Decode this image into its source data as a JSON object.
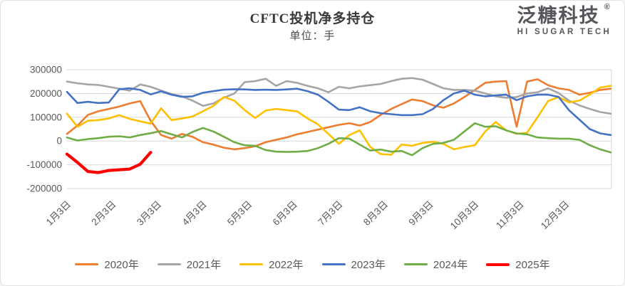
{
  "header": {
    "title": "CFTC投机净多持仓",
    "subtitle": "单位：手"
  },
  "logo": {
    "brand": "泛糖科技",
    "reg_mark": "®",
    "tagline": "HI SUGAR TECH"
  },
  "chart_data": {
    "type": "line",
    "title": "CFTC投机净多持仓",
    "unit_label": "单位：手",
    "xlabel": "",
    "ylabel": "",
    "grid": true,
    "legend_position": "bottom",
    "x_mode": "weekly_points_jan3_to_dec30",
    "x_tick_labels": [
      "1月3日",
      "2月3日",
      "3月3日",
      "4月3日",
      "5月3日",
      "6月3日",
      "7月3日",
      "8月3日",
      "9月3日",
      "10月3日",
      "11月3日",
      "12月3日"
    ],
    "ylim": [
      -200000,
      300000
    ],
    "y_ticks": [
      {
        "label": "300000",
        "value": 300000
      },
      {
        "label": "200000",
        "value": 200000
      },
      {
        "label": "100000",
        "value": 100000
      },
      {
        "label": "0",
        "value": 0
      },
      {
        "label": "-100000",
        "value": -100000
      },
      {
        "label": "-200000",
        "value": -200000
      }
    ],
    "colors": {
      "2020": "#ED7D31",
      "2021": "#A5A5A5",
      "2022": "#FFC000",
      "2023": "#4472C4",
      "2024": "#70AD47",
      "2025": "#FF0000"
    },
    "series": [
      {
        "name": "2020年",
        "color": "#ED7D31",
        "width": 2.6,
        "values": [
          30000,
          65000,
          110000,
          125000,
          135000,
          145000,
          158000,
          168000,
          85000,
          25000,
          10000,
          30000,
          18000,
          -5000,
          -15000,
          -28000,
          -35000,
          -30000,
          -22000,
          -5000,
          5000,
          15000,
          28000,
          38000,
          48000,
          58000,
          68000,
          75000,
          65000,
          80000,
          110000,
          135000,
          155000,
          175000,
          168000,
          150000,
          140000,
          158000,
          185000,
          215000,
          245000,
          250000,
          252000,
          60000,
          250000,
          260000,
          235000,
          222000,
          215000,
          195000,
          203000,
          215000,
          220000
        ]
      },
      {
        "name": "2021年",
        "color": "#A5A5A5",
        "width": 2.6,
        "values": [
          250000,
          243000,
          238000,
          236000,
          228000,
          220000,
          212000,
          238000,
          228000,
          212000,
          198000,
          188000,
          170000,
          148000,
          158000,
          182000,
          200000,
          248000,
          252000,
          262000,
          232000,
          252000,
          245000,
          232000,
          222000,
          205000,
          228000,
          222000,
          230000,
          235000,
          240000,
          252000,
          262000,
          265000,
          258000,
          240000,
          222000,
          215000,
          215000,
          212000,
          200000,
          188000,
          182000,
          185000,
          200000,
          205000,
          222000,
          202000,
          170000,
          150000,
          135000,
          122000,
          115000
        ]
      },
      {
        "name": "2022年",
        "color": "#FFC000",
        "width": 2.6,
        "values": [
          115000,
          60000,
          85000,
          88000,
          95000,
          109000,
          93000,
          83000,
          73000,
          138000,
          88000,
          95000,
          103000,
          125000,
          148000,
          185000,
          170000,
          130000,
          97000,
          128000,
          135000,
          130000,
          125000,
          95000,
          70000,
          30000,
          -12000,
          25000,
          45000,
          -25000,
          -55000,
          -58000,
          -15000,
          -20000,
          -8000,
          -3000,
          -12000,
          -35000,
          -25000,
          -18000,
          40000,
          80000,
          45000,
          30000,
          35000,
          100000,
          168000,
          185000,
          163000,
          170000,
          196000,
          225000,
          232000
        ]
      },
      {
        "name": "2023年",
        "color": "#4472C4",
        "width": 2.6,
        "values": [
          207000,
          160000,
          165000,
          160000,
          162000,
          218000,
          222000,
          215000,
          196000,
          209000,
          195000,
          186000,
          188000,
          203000,
          210000,
          216000,
          218000,
          217000,
          215000,
          216000,
          215000,
          217000,
          220000,
          210000,
          195000,
          165000,
          132000,
          130000,
          142000,
          125000,
          117000,
          113000,
          109000,
          109000,
          113000,
          135000,
          172000,
          200000,
          212000,
          195000,
          188000,
          192000,
          195000,
          172000,
          188000,
          195000,
          195000,
          186000,
          130000,
          90000,
          50000,
          32000,
          25000
        ]
      },
      {
        "name": "2024年",
        "color": "#70AD47",
        "width": 2.6,
        "values": [
          15000,
          2000,
          8000,
          12000,
          18000,
          20000,
          15000,
          25000,
          33000,
          42000,
          28000,
          15000,
          38000,
          55000,
          40000,
          18000,
          -5000,
          -18000,
          -20000,
          -38000,
          -45000,
          -46000,
          -45000,
          -42000,
          -30000,
          -12000,
          12000,
          10000,
          -15000,
          -40000,
          -36000,
          -45000,
          -42000,
          -60000,
          -30000,
          -12000,
          -8000,
          5000,
          40000,
          75000,
          60000,
          62000,
          45000,
          32000,
          28000,
          15000,
          12000,
          10000,
          10000,
          5000,
          -18000,
          -35000,
          -48000
        ]
      },
      {
        "name": "2025年",
        "color": "#FF0000",
        "width": 4.2,
        "values": [
          -55000,
          -90000,
          -128000,
          -133000,
          -124000,
          -121000,
          -118000,
          -98000,
          -48000
        ]
      }
    ]
  }
}
